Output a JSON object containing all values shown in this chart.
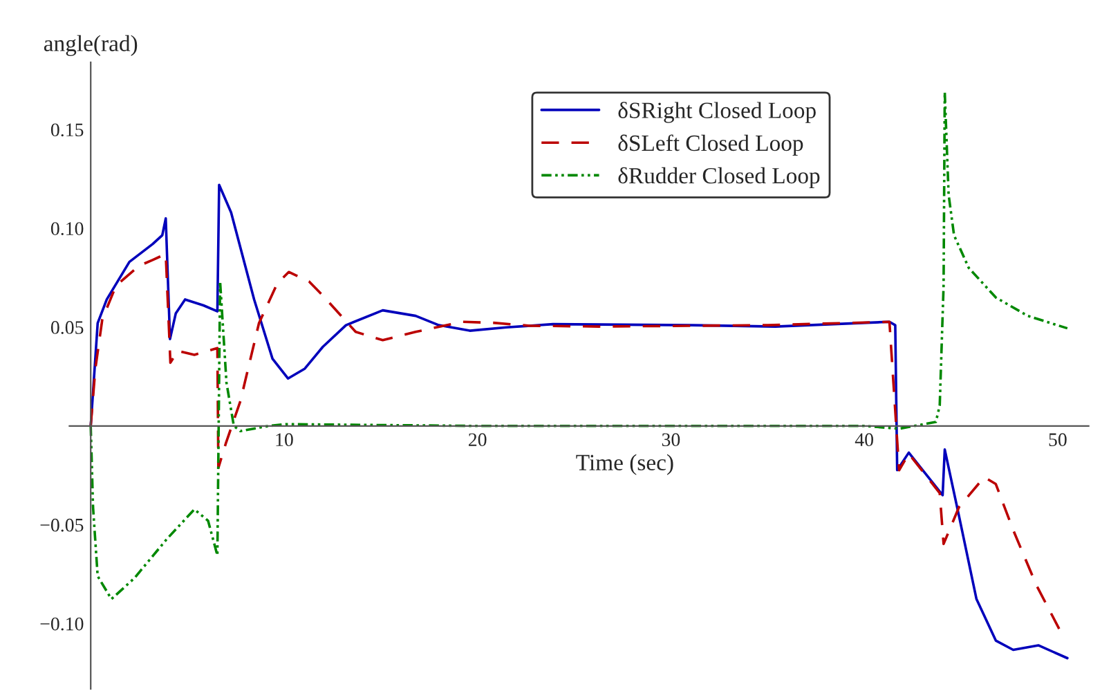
{
  "chart_data": {
    "type": "line",
    "xlabel": "Time (sec)",
    "ylabel": "angle(rad)",
    "xlim": [
      -1.1,
      51.6
    ],
    "ylim": [
      -0.133,
      0.184
    ],
    "xticks": [
      10,
      20,
      30,
      40,
      50
    ],
    "yticks": [
      {
        "value": -0.1,
        "label": "−0.10"
      },
      {
        "value": -0.05,
        "label": "−0.05"
      },
      {
        "value": 0.05,
        "label": "0.05"
      },
      {
        "value": 0.1,
        "label": "0.10"
      },
      {
        "value": 0.15,
        "label": "0.15"
      }
    ],
    "grid": false,
    "legend": "top",
    "marker": "none",
    "series": [
      {
        "name": "δSRight Closed Loop",
        "color": "#0000bb",
        "line_style": "solid",
        "x": [
          0,
          0.12,
          0.36,
          0.83,
          2.0,
          3.2,
          3.7,
          3.88,
          4.1,
          4.4,
          4.88,
          5.83,
          6.55,
          6.64,
          7.26,
          8.45,
          9.4,
          10.2,
          11.07,
          12.0,
          13.2,
          15.1,
          16.8,
          18.0,
          19.6,
          21.5,
          23.9,
          31.1,
          35.4,
          41.3,
          41.6,
          41.7,
          42.3,
          44.05,
          44.16,
          44.9,
          45.8,
          46.8,
          47.7,
          49.0,
          50.5
        ],
        "values": [
          0,
          0.017,
          0.052,
          0.064,
          0.083,
          0.092,
          0.0965,
          0.105,
          0.044,
          0.057,
          0.064,
          0.061,
          0.058,
          0.122,
          0.108,
          0.064,
          0.034,
          0.024,
          0.029,
          0.04,
          0.051,
          0.0585,
          0.0557,
          0.051,
          0.0482,
          0.0499,
          0.0515,
          0.051,
          0.0503,
          0.0527,
          0.051,
          -0.0224,
          -0.0135,
          -0.035,
          -0.0119,
          -0.0457,
          -0.0876,
          -0.1086,
          -0.1133,
          -0.111,
          -0.1175
        ]
      },
      {
        "name": "δSLeft Closed Loop",
        "color": "#bb0000",
        "line_style": "dashed",
        "x": [
          0,
          0.24,
          0.6,
          1.31,
          2.5,
          3.2,
          3.88,
          4.12,
          4.5,
          5.36,
          6.55,
          6.6,
          7.0,
          7.74,
          8.7,
          9.64,
          10.24,
          11.3,
          12.0,
          13.7,
          15.1,
          16.8,
          19.2,
          20.8,
          22.7,
          26.3,
          35.0,
          41.3,
          41.8,
          42.3,
          43.9,
          44.1,
          44.9,
          46.2,
          46.8,
          47.7,
          48.9,
          50.2
        ],
        "values": [
          0,
          0.029,
          0.054,
          0.071,
          0.081,
          0.084,
          0.087,
          0.032,
          0.038,
          0.036,
          0.0394,
          -0.0212,
          -0.0084,
          0.0126,
          0.052,
          0.072,
          0.0779,
          0.073,
          0.066,
          0.0476,
          0.0434,
          0.0476,
          0.0527,
          0.0522,
          0.0507,
          0.0503,
          0.051,
          0.0527,
          -0.0224,
          -0.014,
          -0.034,
          -0.0597,
          -0.041,
          -0.0259,
          -0.0294,
          -0.0527,
          -0.0806,
          -0.105
        ]
      },
      {
        "name": "δRudder Closed Loop",
        "color": "#008800",
        "line_style": "dotted",
        "x": [
          0,
          0.12,
          0.36,
          1.07,
          2.26,
          3.93,
          5.36,
          6.07,
          6.55,
          6.69,
          7.02,
          7.4,
          7.74,
          9.2,
          10.1,
          20.0,
          30.0,
          40.0,
          41.8,
          43.7,
          43.9,
          44.1,
          44.16,
          44.36,
          44.64,
          45.4,
          46.8,
          48.45,
          50.5
        ],
        "values": [
          0,
          -0.041,
          -0.076,
          -0.0876,
          -0.077,
          -0.0573,
          -0.0422,
          -0.048,
          -0.0655,
          0.0732,
          0.0219,
          0,
          -0.0026,
          0,
          0.0009,
          0,
          0,
          0,
          -0.0014,
          0.002,
          0.0103,
          0.071,
          0.169,
          0.117,
          0.0965,
          0.08,
          0.065,
          0.0557,
          0.0494
        ]
      }
    ]
  }
}
